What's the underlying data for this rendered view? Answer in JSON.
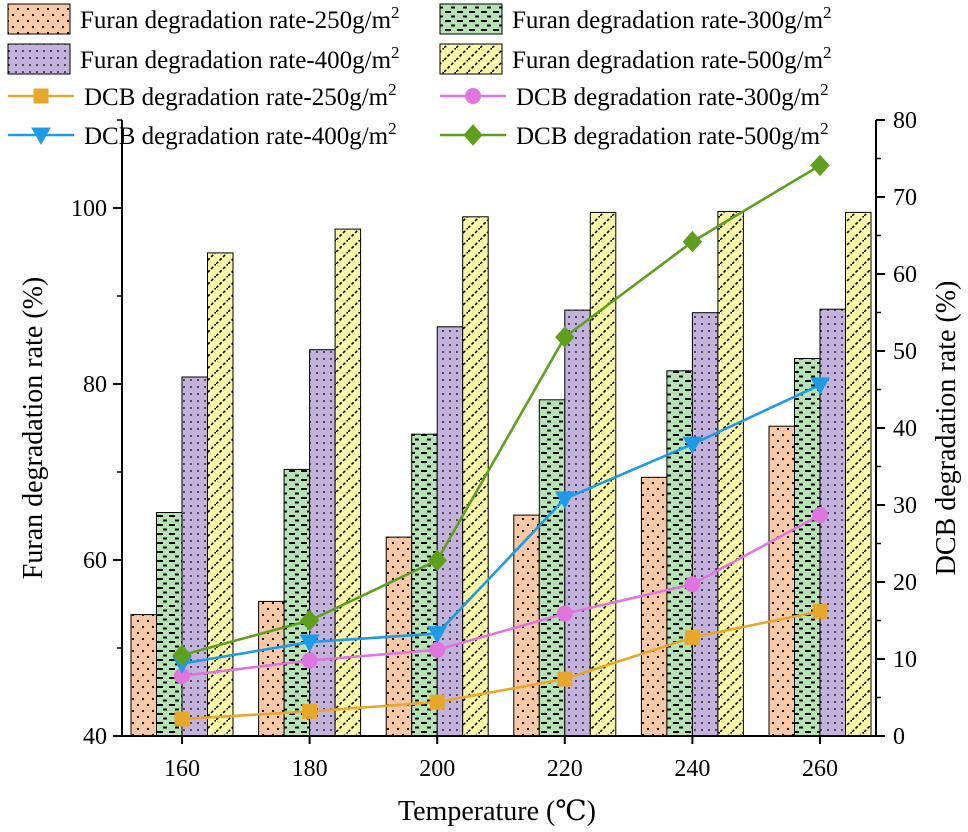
{
  "chart_data": {
    "type": "bar",
    "x": [
      160,
      180,
      200,
      220,
      240,
      260
    ],
    "xlabel": "Temperature (℃)",
    "xticks": [
      "160",
      "180",
      "200",
      "220",
      "240",
      "260"
    ],
    "ylabel_left": "Furan degradation rate (%)",
    "ylim_left": [
      40,
      110
    ],
    "yticks_left": [
      "40",
      "60",
      "80",
      "100"
    ],
    "ylabel_right": "DCB degradation rate (%)",
    "ylim_right": [
      0,
      80
    ],
    "yticks_right": [
      "0",
      "10",
      "20",
      "30",
      "40",
      "50",
      "60",
      "70",
      "80"
    ],
    "bar_series": [
      {
        "name": "Furan degradation rate-250g/m",
        "sup": "2",
        "values": [
          53.8,
          55.3,
          62.6,
          65.1,
          69.4,
          75.2
        ],
        "fill": "#f9c8a4",
        "pattern": "dots"
      },
      {
        "name": "Furan degradation rate-300g/m",
        "sup": "2",
        "values": [
          65.4,
          70.3,
          74.3,
          78.2,
          81.5,
          82.9
        ],
        "fill": "#b6e3b4",
        "pattern": "dashes"
      },
      {
        "name": "Furan degradation rate-400g/m",
        "sup": "2",
        "values": [
          80.8,
          83.9,
          86.5,
          88.4,
          88.1,
          88.5
        ],
        "fill": "#c3b3dc",
        "pattern": "dotgrid"
      },
      {
        "name": "Furan degradation rate-500g/m",
        "sup": "2",
        "values": [
          94.9,
          97.6,
          99.0,
          99.5,
          99.6,
          99.5
        ],
        "fill": "#fbf9a6",
        "pattern": "diag"
      }
    ],
    "line_series": [
      {
        "name": "DCB degradation rate-250g/m",
        "sup": "2",
        "values": [
          2.2,
          3.2,
          4.4,
          7.4,
          12.8,
          16.2
        ],
        "color": "#e6a72a",
        "marker": "square"
      },
      {
        "name": "DCB degradation rate-300g/m",
        "sup": "2",
        "values": [
          7.8,
          9.8,
          11.2,
          15.9,
          19.7,
          28.7
        ],
        "color": "#e075e0",
        "marker": "circle"
      },
      {
        "name": "DCB degradation rate-400g/m",
        "sup": "2",
        "values": [
          9.4,
          12.2,
          13.3,
          30.8,
          37.9,
          45.6
        ],
        "color": "#1d9ae8",
        "marker": "triangle-down"
      },
      {
        "name": "DCB degradation rate-500g/m",
        "sup": "2",
        "values": [
          10.5,
          15.0,
          22.8,
          51.8,
          64.2,
          74.1
        ],
        "color": "#5e9f1e",
        "marker": "diamond"
      }
    ]
  }
}
